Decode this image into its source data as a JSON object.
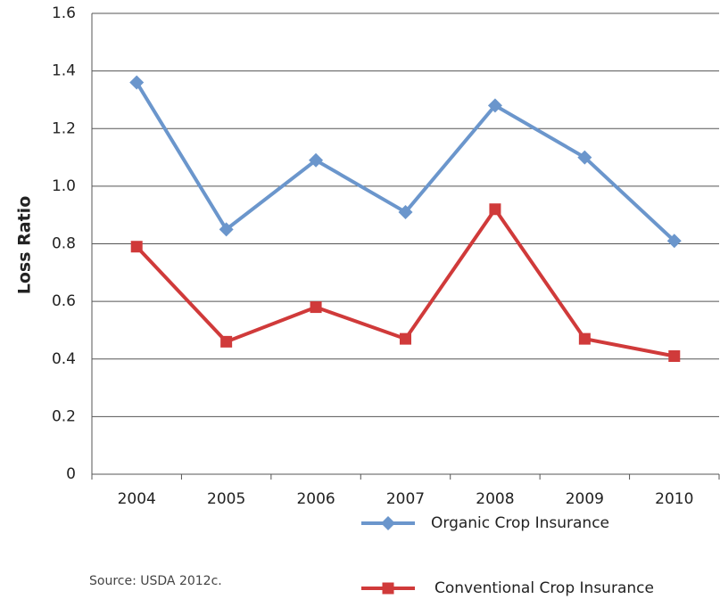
{
  "chart_data": {
    "type": "line",
    "y_label": "Loss Ratio",
    "source": "Source: USDA 2012c.",
    "categories": [
      "2004",
      "2005",
      "2006",
      "2007",
      "2008",
      "2009",
      "2010"
    ],
    "series": [
      {
        "name": "Organic Crop Insurance",
        "color": "#6b96cc",
        "marker": "diamond",
        "values": [
          1.36,
          0.85,
          1.09,
          0.91,
          1.28,
          1.1,
          0.81
        ]
      },
      {
        "name": "Conventional Crop Insurance",
        "color": "#d03a3a",
        "marker": "square",
        "values": [
          0.79,
          0.46,
          0.58,
          0.47,
          0.92,
          0.47,
          0.41
        ]
      }
    ],
    "ylim": [
      0,
      1.6
    ],
    "yticks": [
      0,
      0.2,
      0.4,
      0.6,
      0.8,
      {
        "value": 1,
        "label": "1.0"
      },
      1.2,
      1.4,
      1.6
    ],
    "grid": true,
    "legend": "bottom"
  }
}
